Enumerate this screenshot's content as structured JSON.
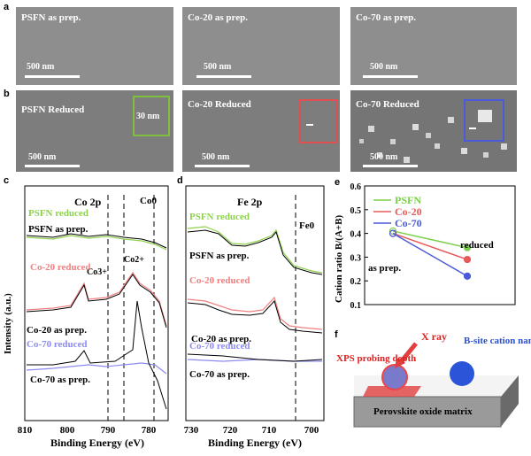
{
  "panels": {
    "a": {
      "label": "a",
      "images": [
        {
          "label": "PSFN as prep.",
          "scale": "500 nm"
        },
        {
          "label": "Co-20 as prep.",
          "scale": "500 nm"
        },
        {
          "label": "Co-70 as prep.",
          "scale": "500 nm"
        }
      ]
    },
    "b": {
      "label": "b",
      "images": [
        {
          "label": "PSFN Reduced",
          "scale": "500 nm",
          "inset_scale": "30 nm",
          "inset_color": "#7fbf3f"
        },
        {
          "label": "Co-20 Reduced",
          "scale": "500 nm",
          "inset_color": "#e05050"
        },
        {
          "label": "Co-70 Reduced",
          "scale": "500 nm",
          "inset_color": "#4a5ad8"
        }
      ]
    },
    "c": {
      "label": "c",
      "title": "Co 2p",
      "ylabel": "Intensity (a.u.)",
      "xlabel": "Binding Energy (eV)",
      "x_ticks": [
        "810",
        "800",
        "790",
        "780"
      ],
      "annotations": {
        "co0": "Co0",
        "co3": "Co3+",
        "co2": "Co2+"
      },
      "traces": [
        {
          "label": "PSFN reduced",
          "color": "#8fd14f"
        },
        {
          "label": "PSFN as prep.",
          "color": "#000000"
        },
        {
          "label": "Co-20 reduced",
          "color": "#f08080"
        },
        {
          "label": "Co-20 as prep.",
          "color": "#000000"
        },
        {
          "label": "Co-70 reduced",
          "color": "#8c8cf0"
        },
        {
          "label": "Co-70 as prep.",
          "color": "#000000"
        }
      ]
    },
    "d": {
      "label": "d",
      "title": "Fe 2p",
      "ylabel": "Intensity (a.u.)",
      "xlabel": "Binding Energy (eV)",
      "x_ticks": [
        "730",
        "720",
        "710",
        "700"
      ],
      "annotations": {
        "fe0": "Fe0"
      },
      "traces": [
        {
          "label": "PSFN reduced",
          "color": "#8fd14f"
        },
        {
          "label": "PSFN as prep.",
          "color": "#000000"
        },
        {
          "label": "Co-20 reduced",
          "color": "#f08080"
        },
        {
          "label": "Co-20 as prep.",
          "color": "#000000"
        },
        {
          "label": "Co-70 reduced",
          "color": "#8c8cf0"
        },
        {
          "label": "Co-70 as prep.",
          "color": "#000000"
        }
      ]
    },
    "e": {
      "label": "e",
      "ylabel": "Cation ratio B/(A+B)",
      "y_ticks": [
        "0.1",
        "0.2",
        "0.3",
        "0.4",
        "0.5",
        "0.6"
      ],
      "annot_reduced": "reduced",
      "annot_asprep": "as prep."
    },
    "f": {
      "label": "f",
      "xray": "X ray",
      "probe": "XPS probing depth",
      "cation": "B-site cation nanoparticle",
      "matrix": "Perovskite oxide matrix"
    }
  },
  "chart_data": {
    "type": "line",
    "x": [
      "as prep.",
      "reduced"
    ],
    "ylim": [
      0.1,
      0.6
    ],
    "ylabel": "Cation ratio B/(A+B)",
    "legend_placement": "top-left",
    "series": [
      {
        "name": "PSFN",
        "color": "#7ccf4a",
        "values": [
          0.41,
          0.34
        ]
      },
      {
        "name": "Co-20",
        "color": "#e85a5a",
        "values": [
          0.4,
          0.29
        ]
      },
      {
        "name": "Co-70",
        "color": "#4a5ad8",
        "values": [
          0.4,
          0.22
        ]
      }
    ]
  }
}
